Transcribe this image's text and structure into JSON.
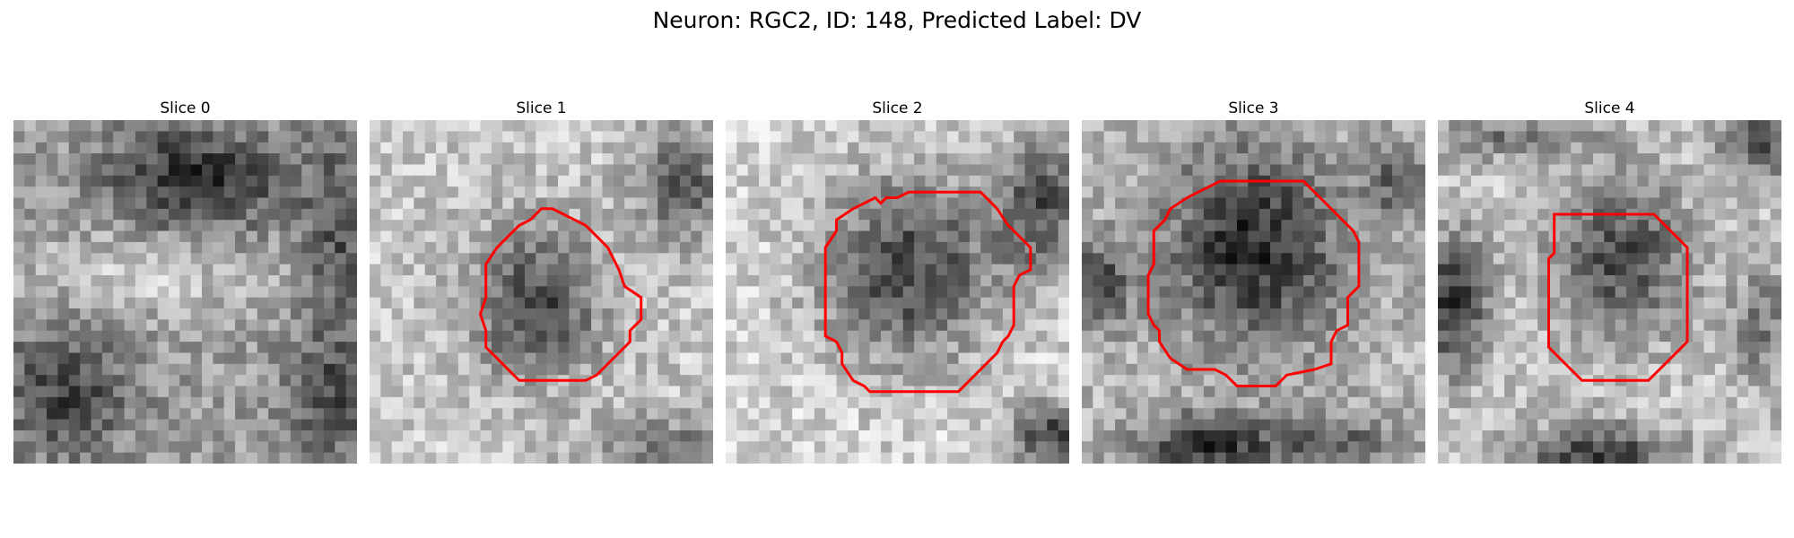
{
  "figure": {
    "title": "Neuron: RGC2, ID: 148, Predicted Label: DV",
    "contour_color": "#ff0000",
    "colormap": "gray",
    "panels": [
      {
        "title": "Slice 0",
        "has_contour": false
      },
      {
        "title": "Slice 1",
        "has_contour": true
      },
      {
        "title": "Slice 2",
        "has_contour": true
      },
      {
        "title": "Slice 3",
        "has_contour": true
      },
      {
        "title": "Slice 4",
        "has_contour": true
      }
    ]
  }
}
